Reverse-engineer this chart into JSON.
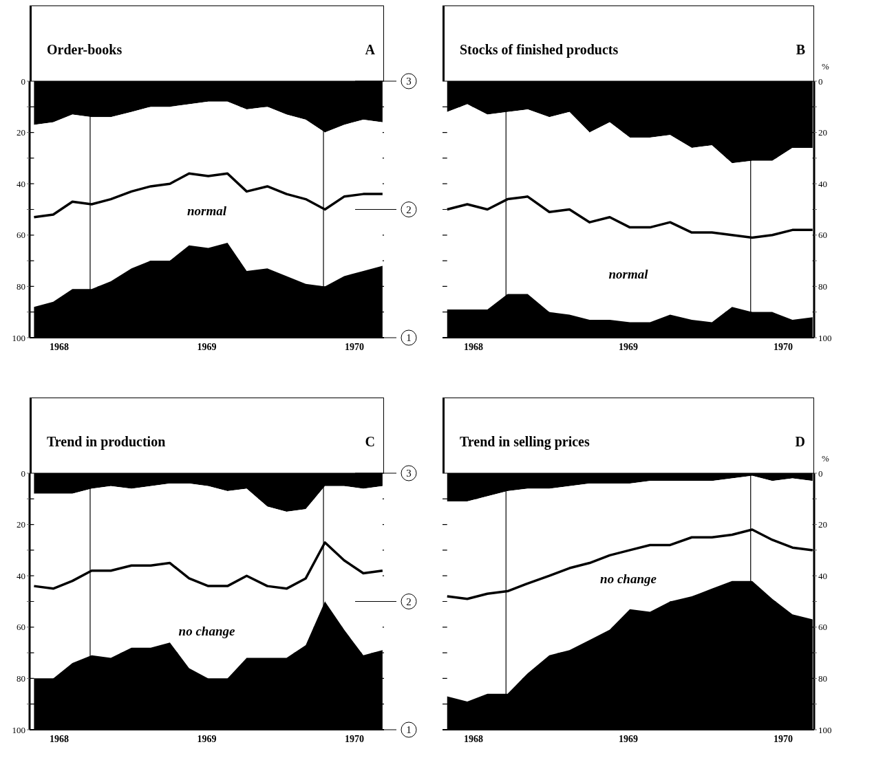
{
  "chart_data": [
    {
      "type": "area",
      "stacked": true,
      "title": "Order-books",
      "annotations": [
        "A",
        "normal"
      ],
      "x": [
        1967.83,
        1967.96,
        1968.09,
        1968.22,
        1968.35,
        1968.49,
        1968.62,
        1968.75,
        1968.88,
        1969.01,
        1969.14,
        1969.27,
        1969.41,
        1969.54,
        1969.67,
        1969.8,
        1969.93,
        1970.06,
        1970.19
      ],
      "series": [
        {
          "color": "#000000",
          "values": [
            17,
            16,
            13,
            14,
            14,
            12,
            10,
            10,
            9,
            8,
            8,
            11,
            10,
            13,
            15,
            20,
            17,
            15,
            16
          ]
        },
        {
          "color": "#ffffff",
          "values": [
            71,
            70,
            68,
            67,
            64,
            61,
            60,
            60,
            55,
            57,
            55,
            63,
            63,
            63,
            64,
            60,
            59,
            59,
            56
          ]
        },
        {
          "color": "#000000",
          "values": [
            12,
            14,
            19,
            19,
            22,
            27,
            30,
            30,
            36,
            35,
            37,
            26,
            27,
            24,
            21,
            20,
            24,
            26,
            28
          ]
        },
        {
          "type": "line",
          "color": "#000000",
          "values": [
            53,
            52,
            47,
            48,
            46,
            43,
            41,
            40,
            36,
            37,
            36,
            43,
            41,
            44,
            46,
            50,
            45,
            44,
            44
          ]
        }
      ],
      "xlim": [
        1967.8,
        1970.2
      ],
      "xticks": [
        1968,
        1969,
        1970
      ],
      "ylim": [
        100,
        0
      ],
      "yticks": [
        0,
        {
          "value": 10,
          "label": null
        },
        20,
        {
          "value": 30,
          "label": null
        },
        40,
        {
          "value": 50,
          "label": null
        },
        60,
        {
          "value": 70,
          "label": null
        },
        80,
        {
          "value": 90,
          "label": null
        },
        100
      ],
      "y2lim": [
        1,
        3
      ],
      "y2ticks": [
        1,
        2,
        3
      ],
      "ref_lines": [
        {
          "axis": "x",
          "value": 1968.21
        },
        {
          "axis": "x",
          "value": 1969.79
        }
      ],
      "grid": "y",
      "legend": false
    },
    {
      "type": "area",
      "stacked": true,
      "title": "Stocks of finished products",
      "ylabel": "%",
      "annotations": [
        "B",
        "normal"
      ],
      "x": [
        1967.83,
        1967.96,
        1968.09,
        1968.22,
        1968.35,
        1968.49,
        1968.62,
        1968.75,
        1968.88,
        1969.01,
        1969.14,
        1969.27,
        1969.41,
        1969.54,
        1969.67,
        1969.8,
        1969.93,
        1970.06,
        1970.19
      ],
      "series": [
        {
          "color": "#000000",
          "values": [
            12,
            9,
            13,
            12,
            11,
            14,
            12,
            20,
            16,
            22,
            22,
            21,
            26,
            25,
            32,
            31,
            31,
            26,
            26
          ]
        },
        {
          "color": "#ffffff",
          "values": [
            77,
            80,
            76,
            71,
            72,
            76,
            79,
            73,
            77,
            72,
            72,
            70,
            67,
            69,
            56,
            59,
            59,
            67,
            66
          ]
        },
        {
          "color": "#000000",
          "values": [
            11,
            11,
            11,
            17,
            17,
            10,
            9,
            7,
            7,
            6,
            6,
            9,
            7,
            6,
            12,
            10,
            10,
            7,
            8
          ]
        },
        {
          "type": "line",
          "color": "#000000",
          "values": [
            50,
            48,
            50,
            46,
            45,
            51,
            50,
            55,
            53,
            57,
            57,
            55,
            59,
            59,
            60,
            61,
            60,
            58,
            58
          ]
        }
      ],
      "xlim": [
        1967.8,
        1970.2
      ],
      "xticks": [
        1968,
        1969,
        1970
      ],
      "ylim": [
        100,
        0
      ],
      "yticks": [
        0,
        {
          "value": 10,
          "label": null
        },
        20,
        {
          "value": 30,
          "label": null
        },
        40,
        {
          "value": 50,
          "label": null
        },
        60,
        {
          "value": 70,
          "label": null
        },
        80,
        {
          "value": 90,
          "label": null
        },
        100
      ],
      "ref_lines": [
        {
          "axis": "x",
          "value": 1968.21
        },
        {
          "axis": "x",
          "value": 1969.79
        }
      ],
      "grid": "y",
      "legend": false
    },
    {
      "type": "area",
      "stacked": true,
      "title": "Trend in production",
      "annotations": [
        "C",
        "no change"
      ],
      "x": [
        1967.83,
        1967.96,
        1968.09,
        1968.22,
        1968.35,
        1968.49,
        1968.62,
        1968.75,
        1968.88,
        1969.01,
        1969.14,
        1969.27,
        1969.41,
        1969.54,
        1969.67,
        1969.8,
        1969.93,
        1970.06,
        1970.19
      ],
      "series": [
        {
          "color": "#000000",
          "values": [
            8,
            8,
            8,
            6,
            5,
            6,
            5,
            4,
            4,
            5,
            7,
            6,
            13,
            15,
            14,
            5,
            5,
            6,
            5
          ]
        },
        {
          "color": "#ffffff",
          "values": [
            72,
            72,
            66,
            65,
            67,
            62,
            63,
            62,
            72,
            75,
            73,
            66,
            59,
            57,
            53,
            45,
            56,
            65,
            64
          ]
        },
        {
          "color": "#000000",
          "values": [
            20,
            20,
            26,
            29,
            28,
            32,
            32,
            34,
            24,
            20,
            20,
            28,
            28,
            28,
            33,
            50,
            39,
            29,
            31
          ]
        },
        {
          "type": "line",
          "color": "#000000",
          "values": [
            44,
            45,
            42,
            38,
            38,
            36,
            36,
            35,
            41,
            44,
            44,
            40,
            44,
            45,
            41,
            27,
            34,
            39,
            38
          ]
        }
      ],
      "xlim": [
        1967.8,
        1970.2
      ],
      "xticks": [
        1968,
        1969,
        1970
      ],
      "ylim": [
        100,
        0
      ],
      "yticks": [
        0,
        {
          "value": 10,
          "label": null
        },
        20,
        {
          "value": 30,
          "label": null
        },
        40,
        {
          "value": 50,
          "label": null
        },
        60,
        {
          "value": 70,
          "label": null
        },
        80,
        {
          "value": 90,
          "label": null
        },
        100
      ],
      "y2lim": [
        1,
        3
      ],
      "y2ticks": [
        1,
        2,
        3
      ],
      "ref_lines": [
        {
          "axis": "x",
          "value": 1968.21
        },
        {
          "axis": "x",
          "value": 1969.79
        }
      ],
      "grid": "y",
      "legend": false
    },
    {
      "type": "area",
      "stacked": true,
      "title": "Trend in selling prices",
      "ylabel": "%",
      "annotations": [
        "D",
        "no change"
      ],
      "x": [
        1967.83,
        1967.96,
        1968.09,
        1968.22,
        1968.35,
        1968.49,
        1968.62,
        1968.75,
        1968.88,
        1969.01,
        1969.14,
        1969.27,
        1969.41,
        1969.54,
        1969.67,
        1969.8,
        1969.93,
        1970.06,
        1970.19
      ],
      "series": [
        {
          "color": "#000000",
          "values": [
            11,
            11,
            9,
            7,
            6,
            6,
            5,
            4,
            4,
            4,
            3,
            3,
            3,
            3,
            2,
            1,
            3,
            2,
            3
          ]
        },
        {
          "color": "#ffffff",
          "values": [
            76,
            78,
            77,
            79,
            72,
            65,
            64,
            61,
            57,
            49,
            51,
            47,
            45,
            42,
            40,
            41,
            46,
            53,
            54
          ]
        },
        {
          "color": "#000000",
          "values": [
            13,
            11,
            14,
            14,
            22,
            29,
            31,
            35,
            39,
            47,
            46,
            50,
            52,
            55,
            58,
            58,
            51,
            45,
            43
          ]
        },
        {
          "type": "line",
          "color": "#000000",
          "values": [
            48,
            49,
            47,
            46,
            43,
            40,
            37,
            35,
            32,
            30,
            28,
            28,
            25,
            25,
            24,
            22,
            26,
            29,
            30
          ]
        }
      ],
      "xlim": [
        1967.8,
        1970.2
      ],
      "xticks": [
        1968,
        1969,
        1970
      ],
      "ylim": [
        100,
        0
      ],
      "yticks": [
        0,
        {
          "value": 10,
          "label": null
        },
        20,
        {
          "value": 30,
          "label": null
        },
        40,
        {
          "value": 50,
          "label": null
        },
        60,
        {
          "value": 70,
          "label": null
        },
        80,
        {
          "value": 90,
          "label": null
        },
        100
      ],
      "ref_lines": [
        {
          "axis": "x",
          "value": 1968.21
        },
        {
          "axis": "x",
          "value": 1969.79
        }
      ],
      "grid": "y",
      "legend": false
    }
  ]
}
